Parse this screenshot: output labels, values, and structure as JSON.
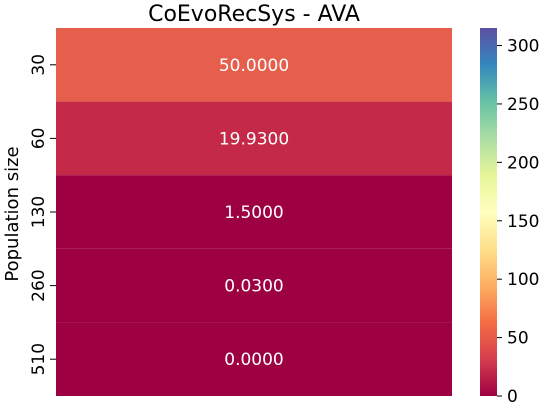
{
  "chart_data": {
    "type": "heatmap",
    "title": "CoEvoRecSys - AVA",
    "xlabel": "",
    "ylabel": "Population size",
    "rows": [
      "30",
      "60",
      "130",
      "260",
      "510"
    ],
    "columns": [
      ""
    ],
    "values": [
      [
        50.0
      ],
      [
        19.93
      ],
      [
        1.5
      ],
      [
        0.03
      ],
      [
        0.0
      ]
    ],
    "cell_labels": [
      "50.0000",
      "19.9300",
      "1.5000",
      "0.0300",
      "0.0000"
    ],
    "colormap": "Spectral",
    "vmin": 0,
    "vmax": 315,
    "colorbar_ticks": [
      "0",
      "50",
      "100",
      "150",
      "200",
      "250",
      "300"
    ],
    "colorbar_tick_values": [
      0,
      50,
      100,
      150,
      200,
      250,
      300
    ],
    "cell_colors": [
      "#e65f4d",
      "#c42a48",
      "#9e0142",
      "#9e0142",
      "#9e0142"
    ],
    "label_color": "#ffffff"
  }
}
